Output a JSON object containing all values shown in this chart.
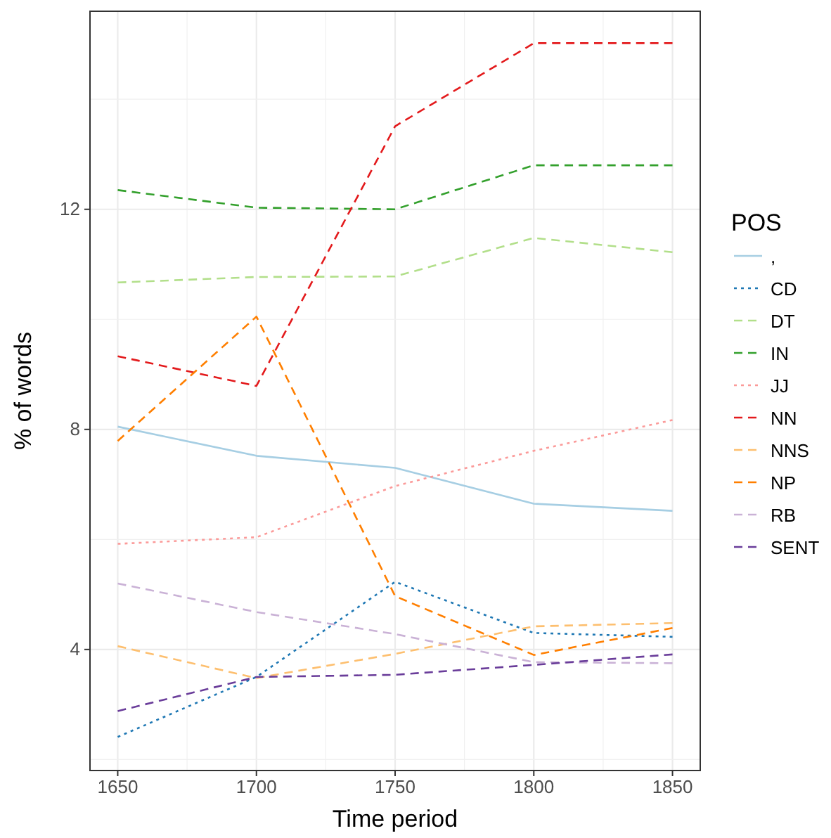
{
  "chart_data": {
    "type": "line",
    "xlabel": "Time period",
    "ylabel": "% of words",
    "legend_title": "POS",
    "x": [
      1650,
      1700,
      1750,
      1800,
      1850
    ],
    "xlim": [
      1640,
      1860
    ],
    "xticks": [
      1650,
      1700,
      1750,
      1800,
      1850
    ],
    "ylim": [
      1.8,
      15.6
    ],
    "yticks": [
      4,
      8,
      12
    ],
    "grid": true,
    "legend": "right",
    "series": [
      {
        "name": ",",
        "color": "#a6cee3",
        "line_style": "solid",
        "values": [
          8.05,
          7.52,
          7.3,
          6.65,
          6.52
        ]
      },
      {
        "name": "CD",
        "color": "#1f78b4",
        "line_style": "dotted",
        "values": [
          2.41,
          3.5,
          5.23,
          4.3,
          4.23
        ]
      },
      {
        "name": "DT",
        "color": "#b2df8a",
        "line_style": "dashed",
        "values": [
          10.67,
          10.77,
          10.78,
          11.48,
          11.22
        ]
      },
      {
        "name": "IN",
        "color": "#33a02c",
        "line_style": "dashed",
        "values": [
          12.35,
          12.03,
          12.0,
          12.8,
          12.8
        ]
      },
      {
        "name": "JJ",
        "color": "#fb9a99",
        "line_style": "dotted",
        "values": [
          5.92,
          6.04,
          6.97,
          7.61,
          8.17
        ]
      },
      {
        "name": "NN",
        "color": "#e31a1c",
        "line_style": "dashed",
        "values": [
          9.33,
          8.79,
          13.51,
          15.02,
          15.02
        ]
      },
      {
        "name": "NNS",
        "color": "#fdbf6f",
        "line_style": "dashed",
        "values": [
          4.06,
          3.48,
          3.92,
          4.42,
          4.48
        ]
      },
      {
        "name": "NP",
        "color": "#ff7f00",
        "line_style": "dashed",
        "values": [
          7.79,
          10.05,
          4.97,
          3.9,
          4.39
        ]
      },
      {
        "name": "RB",
        "color": "#cab2d6",
        "line_style": "dashed",
        "values": [
          5.2,
          4.68,
          4.28,
          3.77,
          3.75
        ]
      },
      {
        "name": "SENT",
        "color": "#6a3d9a",
        "line_style": "dashed",
        "values": [
          2.88,
          3.5,
          3.54,
          3.72,
          3.91
        ]
      }
    ]
  }
}
